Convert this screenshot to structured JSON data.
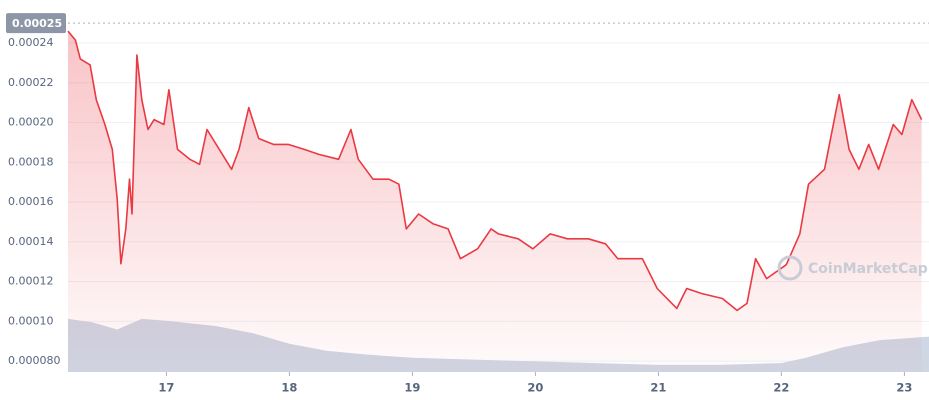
{
  "chart_data": {
    "type": "line",
    "xlim": [
      16.2,
      23.2
    ],
    "xticks": [
      17,
      18,
      19,
      20,
      21,
      22,
      23
    ],
    "ylim": [
      7.45e-05,
      0.0002526
    ],
    "yticks": [
      {
        "value": 8e-05,
        "label": "0.000080"
      },
      {
        "value": 0.0001,
        "label": "0.00010"
      },
      {
        "value": 0.00012,
        "label": "0.00012"
      },
      {
        "value": 0.00014,
        "label": "0.00014"
      },
      {
        "value": 0.00016,
        "label": "0.00016"
      },
      {
        "value": 0.00018,
        "label": "0.00018"
      },
      {
        "value": 0.0002,
        "label": "0.00020"
      },
      {
        "value": 0.00022,
        "label": "0.00022"
      },
      {
        "value": 0.00024,
        "label": "0.00024"
      }
    ],
    "grid": true,
    "max_marker": {
      "value": 0.00025,
      "label": "0.00025"
    },
    "watermark": "CoinMarketCap",
    "y2lim": [
      0,
      100
    ],
    "series": [
      {
        "color": "#ea3943",
        "x": [
          16.2,
          16.26,
          16.3,
          16.38,
          16.43,
          16.5,
          16.56,
          16.6,
          16.63,
          16.67,
          16.7,
          16.72,
          16.76,
          16.8,
          16.85,
          16.9,
          16.98,
          17.02,
          17.09,
          17.19,
          17.27,
          17.33,
          17.43,
          17.53,
          17.59,
          17.67,
          17.75,
          17.87,
          17.99,
          18.12,
          18.24,
          18.4,
          18.5,
          18.56,
          18.68,
          18.81,
          18.89,
          18.95,
          19.05,
          19.17,
          19.29,
          19.39,
          19.53,
          19.64,
          19.7,
          19.86,
          19.98,
          20.12,
          20.26,
          20.43,
          20.57,
          20.67,
          20.87,
          20.99,
          21.15,
          21.23,
          21.35,
          21.52,
          21.64,
          21.72,
          21.79,
          21.88,
          22.04,
          22.15,
          22.22,
          22.35,
          22.47,
          22.55,
          22.63,
          22.71,
          22.79,
          22.91,
          22.98,
          23.06,
          23.14
        ],
        "values": [
          0.000246,
          0.0002415,
          0.000232,
          0.000229,
          0.0002115,
          0.000199,
          0.0001865,
          0.0001615,
          0.000129,
          0.0001465,
          0.0001715,
          0.000154,
          0.000234,
          0.0002115,
          0.0001965,
          0.0002015,
          0.000199,
          0.0002165,
          0.0001865,
          0.0001815,
          0.000179,
          0.0001965,
          0.0001865,
          0.0001765,
          0.0001865,
          0.0002075,
          0.000192,
          0.000189,
          0.000189,
          0.0001865,
          0.000184,
          0.0001815,
          0.0001965,
          0.0001815,
          0.0001715,
          0.0001715,
          0.000169,
          0.0001465,
          0.000154,
          0.000149,
          0.0001465,
          0.0001315,
          0.0001365,
          0.0001465,
          0.000144,
          0.0001415,
          0.0001365,
          0.000144,
          0.0001415,
          0.0001415,
          0.000139,
          0.0001315,
          0.0001315,
          0.0001165,
          0.0001065,
          0.0001165,
          0.000114,
          0.0001115,
          0.0001055,
          0.000109,
          0.0001315,
          0.0001215,
          0.0001285,
          0.000144,
          0.000169,
          0.0001765,
          0.000214,
          0.0001865,
          0.0001765,
          0.000189,
          0.0001765,
          0.000199,
          0.000194,
          0.0002115,
          0.0002015
        ]
      },
      {
        "color": "#cfd6e4",
        "axis": "y2",
        "x": [
          16.2,
          16.4,
          16.6,
          16.8,
          17.0,
          17.4,
          17.7,
          18.0,
          18.3,
          18.6,
          19.0,
          19.5,
          20.0,
          20.5,
          21.0,
          21.5,
          22.0,
          22.2,
          22.5,
          22.8,
          23.2
        ],
        "values": [
          15,
          14,
          12,
          15,
          14.5,
          13,
          11,
          8,
          6,
          5,
          4,
          3.5,
          3,
          2.5,
          2,
          2,
          2.5,
          4,
          7,
          9,
          10
        ]
      }
    ]
  }
}
